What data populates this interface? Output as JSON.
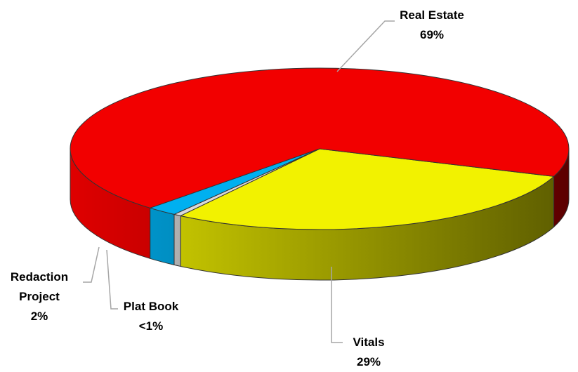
{
  "chart_data": {
    "type": "pie3d",
    "categories": [
      "Vitals",
      "Plat Book",
      "Redaction Project",
      "Real Estate"
    ],
    "values": [
      29,
      0.5,
      2,
      69
    ],
    "value_labels": [
      "29%",
      "<1%",
      "2%",
      "69%"
    ],
    "colors": [
      "#f2f200",
      "#d9d9d9",
      "#00b0f0",
      "#f20000"
    ]
  }
}
